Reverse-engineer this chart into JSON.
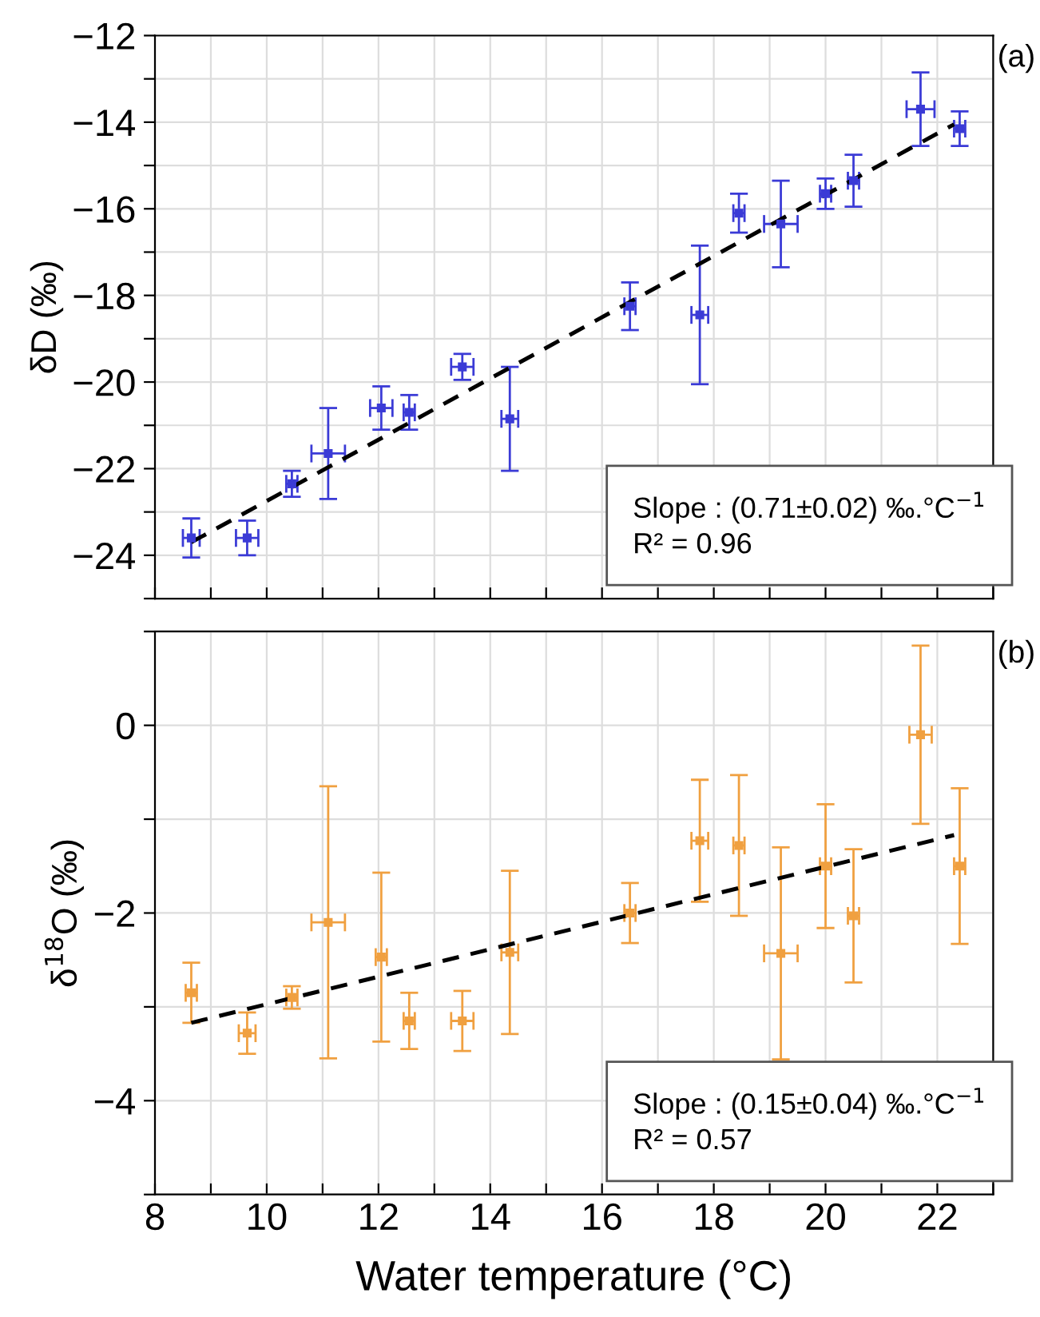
{
  "chart_data": [
    {
      "type": "scatter",
      "ylabel": "δD (‰)",
      "annotations": [
        "(a)",
        "Slope : (0.71±0.02) ‰.°C$^{−1}$\nR² = 0.96"
      ],
      "xlim": [
        8,
        23
      ],
      "ylim": [
        -25,
        -12
      ],
      "xticks": [
        8,
        {
          "value": 9,
          "label": null
        },
        10,
        {
          "value": 11,
          "label": null
        },
        12,
        {
          "value": 13,
          "label": null
        },
        14,
        {
          "value": 15,
          "label": null
        },
        16,
        {
          "value": 17,
          "label": null
        },
        18,
        {
          "value": 19,
          "label": null
        },
        20,
        {
          "value": 21,
          "label": null
        },
        22,
        {
          "value": 23,
          "label": null
        }
      ],
      "yticks": [
        {
          "value": -25,
          "label": null
        },
        -24,
        {
          "value": -23,
          "label": null
        },
        -22,
        {
          "value": -21,
          "label": null
        },
        -20,
        {
          "value": -19,
          "label": null
        },
        -18,
        {
          "value": -17,
          "label": null
        },
        -16,
        {
          "value": -15,
          "label": null
        },
        -14,
        {
          "value": -13,
          "label": null
        },
        -12
      ],
      "tick_labels": "y",
      "grid": true,
      "series": [
        {
          "marker": "square",
          "color": "#3b3bd6",
          "x": [
            8.65,
            9.65,
            10.45,
            11.1,
            12.05,
            12.55,
            13.5,
            14.35,
            16.5,
            17.75,
            18.45,
            19.2,
            20.0,
            20.5,
            21.7,
            22.4
          ],
          "values": [
            -23.6,
            -23.6,
            -22.35,
            -21.65,
            -20.6,
            -20.7,
            -19.65,
            -20.85,
            -18.25,
            -18.45,
            -16.1,
            -16.35,
            -15.65,
            -15.35,
            -13.7,
            -14.15
          ],
          "errors": [
            0.45,
            0.4,
            0.3,
            1.05,
            0.5,
            0.4,
            0.3,
            1.2,
            0.55,
            1.6,
            0.45,
            1.0,
            0.35,
            0.6,
            0.85,
            0.4
          ],
          "xerrors": [
            0.15,
            0.2,
            0.1,
            0.3,
            0.2,
            0.1,
            0.2,
            0.15,
            0.1,
            0.15,
            0.1,
            0.3,
            0.1,
            0.1,
            0.25,
            0.1
          ]
        },
        {
          "type": "line",
          "color": "#000000",
          "line_style": "dashed",
          "x": [
            8.65,
            22.3
          ],
          "values": [
            -23.7,
            -14.05
          ]
        }
      ]
    },
    {
      "type": "scatter",
      "ylabel": "δ$^{18}$O (‰)",
      "xlabel": "Water temperature (°C)",
      "annotations": [
        "(b)",
        "Slope : (0.15±0.04) ‰.°C$^{−1}$\nR² = 0.57"
      ],
      "xlim": [
        8,
        23
      ],
      "ylim": [
        -5,
        1
      ],
      "xticks": [
        8,
        {
          "value": 9,
          "label": null
        },
        10,
        {
          "value": 11,
          "label": null
        },
        12,
        {
          "value": 13,
          "label": null
        },
        14,
        {
          "value": 15,
          "label": null
        },
        16,
        {
          "value": 17,
          "label": null
        },
        18,
        {
          "value": 19,
          "label": null
        },
        20,
        {
          "value": 21,
          "label": null
        },
        22,
        {
          "value": 23,
          "label": null
        }
      ],
      "yticks": [
        {
          "value": -5,
          "label": null
        },
        -4,
        {
          "value": -3,
          "label": null
        },
        -2,
        {
          "value": -1,
          "label": null
        },
        0,
        {
          "value": 1,
          "label": null
        }
      ],
      "grid": true,
      "series": [
        {
          "marker": "square",
          "color": "#f0a040",
          "x": [
            8.65,
            9.65,
            10.45,
            11.1,
            12.05,
            12.55,
            13.5,
            14.35,
            16.5,
            17.75,
            18.45,
            19.2,
            20.0,
            20.5,
            21.7,
            22.4
          ],
          "values": [
            -2.85,
            -3.28,
            -2.9,
            -2.1,
            -2.47,
            -3.15,
            -3.15,
            -2.42,
            -2.0,
            -1.23,
            -1.28,
            -2.43,
            -1.5,
            -2.03,
            -0.1,
            -1.5
          ],
          "errors": [
            0.32,
            0.22,
            0.12,
            1.45,
            0.9,
            0.3,
            0.32,
            0.87,
            0.32,
            0.65,
            0.75,
            1.13,
            0.66,
            0.71,
            0.95,
            0.83
          ],
          "xerrors": [
            0.1,
            0.15,
            0.1,
            0.3,
            0.1,
            0.1,
            0.2,
            0.15,
            0.1,
            0.15,
            0.1,
            0.3,
            0.1,
            0.1,
            0.2,
            0.1
          ]
        },
        {
          "type": "line",
          "color": "#000000",
          "line_style": "dashed",
          "x": [
            8.65,
            22.3
          ],
          "values": [
            -3.17,
            -1.17
          ]
        }
      ]
    }
  ]
}
